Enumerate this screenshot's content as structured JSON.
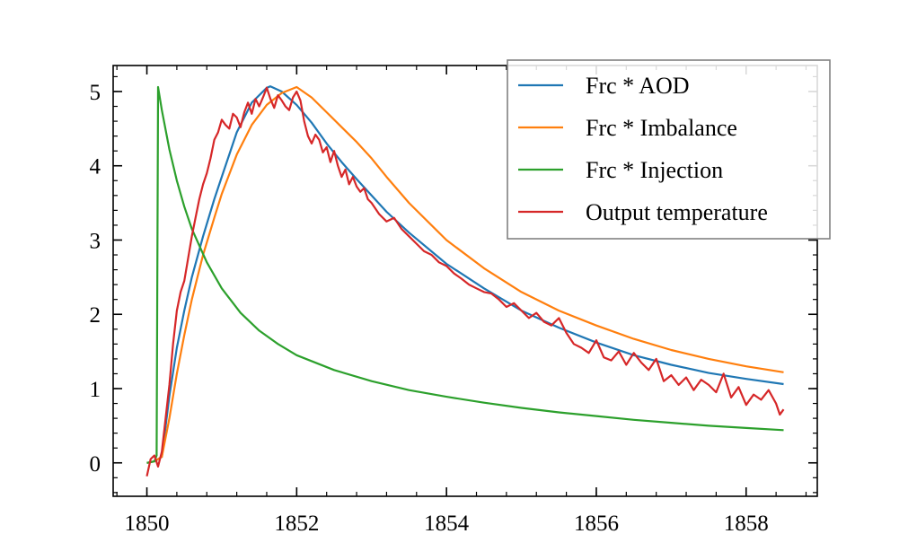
{
  "chart_data": {
    "type": "line",
    "title": "",
    "xlabel": "",
    "ylabel": "",
    "xlim": [
      1849.55,
      1858.95
    ],
    "ylim": [
      -0.45,
      5.35
    ],
    "xticks": [
      1850,
      1852,
      1854,
      1856,
      1858
    ],
    "xtick_labels": [
      "1850",
      "1852",
      "1854",
      "1856",
      "1858"
    ],
    "yticks": [
      0,
      1,
      2,
      3,
      4,
      5
    ],
    "ytick_labels": [
      "0",
      "1",
      "2",
      "3",
      "4",
      "5"
    ],
    "grid": false,
    "legend_position": "top-right",
    "series": [
      {
        "name": "Frc * AOD",
        "color": "#1f77b4",
        "x": [
          1850.0,
          1850.1,
          1850.2,
          1850.3,
          1850.4,
          1850.5,
          1850.6,
          1850.75,
          1850.9,
          1851.0,
          1851.2,
          1851.4,
          1851.6,
          1851.65,
          1851.8,
          1852.0,
          1852.2,
          1852.4,
          1852.6,
          1852.8,
          1853.0,
          1853.2,
          1853.5,
          1854.0,
          1854.5,
          1855.0,
          1855.5,
          1856.0,
          1856.5,
          1857.0,
          1857.5,
          1858.0,
          1858.5
        ],
        "y": [
          0.0,
          0.02,
          0.08,
          0.9,
          1.55,
          2.05,
          2.5,
          3.05,
          3.55,
          3.85,
          4.45,
          4.85,
          5.05,
          5.07,
          5.0,
          4.82,
          4.58,
          4.3,
          4.05,
          3.82,
          3.6,
          3.38,
          3.1,
          2.68,
          2.35,
          2.05,
          1.82,
          1.62,
          1.45,
          1.32,
          1.21,
          1.13,
          1.06
        ]
      },
      {
        "name": "Frc * Imbalance",
        "color": "#ff7f0e",
        "x": [
          1850.0,
          1850.1,
          1850.2,
          1850.3,
          1850.4,
          1850.5,
          1850.6,
          1850.75,
          1850.9,
          1851.0,
          1851.2,
          1851.4,
          1851.6,
          1851.8,
          1852.0,
          1852.2,
          1852.4,
          1852.6,
          1852.8,
          1853.0,
          1853.2,
          1853.5,
          1854.0,
          1854.5,
          1855.0,
          1855.5,
          1856.0,
          1856.5,
          1857.0,
          1857.5,
          1858.0,
          1858.5
        ],
        "y": [
          0.0,
          0.02,
          0.08,
          0.6,
          1.2,
          1.72,
          2.2,
          2.8,
          3.3,
          3.62,
          4.15,
          4.55,
          4.82,
          4.98,
          5.06,
          4.92,
          4.72,
          4.52,
          4.32,
          4.1,
          3.85,
          3.5,
          3.0,
          2.62,
          2.3,
          2.05,
          1.85,
          1.67,
          1.52,
          1.4,
          1.3,
          1.22
        ]
      },
      {
        "name": "Frc * Injection",
        "color": "#2ca02c",
        "x": [
          1850.0,
          1850.1,
          1850.13,
          1850.15,
          1850.2,
          1850.3,
          1850.4,
          1850.5,
          1850.6,
          1850.8,
          1851.0,
          1851.25,
          1851.5,
          1851.75,
          1852.0,
          1852.5,
          1853.0,
          1853.5,
          1854.0,
          1854.5,
          1855.0,
          1855.5,
          1856.0,
          1856.5,
          1857.0,
          1857.5,
          1858.0,
          1858.5
        ],
        "y": [
          0.0,
          0.02,
          0.1,
          5.06,
          4.75,
          4.22,
          3.8,
          3.45,
          3.15,
          2.7,
          2.35,
          2.02,
          1.78,
          1.6,
          1.45,
          1.25,
          1.1,
          0.98,
          0.89,
          0.81,
          0.74,
          0.68,
          0.63,
          0.58,
          0.54,
          0.5,
          0.47,
          0.44
        ]
      },
      {
        "name": "Output temperature",
        "color": "#d62728",
        "x": [
          1850.0,
          1850.05,
          1850.1,
          1850.15,
          1850.2,
          1850.25,
          1850.3,
          1850.35,
          1850.4,
          1850.45,
          1850.5,
          1850.55,
          1850.6,
          1850.65,
          1850.7,
          1850.75,
          1850.8,
          1850.85,
          1850.9,
          1850.95,
          1851.0,
          1851.05,
          1851.1,
          1851.15,
          1851.2,
          1851.25,
          1851.3,
          1851.35,
          1851.4,
          1851.45,
          1851.5,
          1851.55,
          1851.6,
          1851.65,
          1851.7,
          1851.75,
          1851.8,
          1851.85,
          1851.9,
          1851.95,
          1852.0,
          1852.05,
          1852.1,
          1852.15,
          1852.2,
          1852.25,
          1852.3,
          1852.35,
          1852.4,
          1852.45,
          1852.5,
          1852.55,
          1852.6,
          1852.65,
          1852.7,
          1852.75,
          1852.8,
          1852.85,
          1852.9,
          1852.95,
          1853.0,
          1853.1,
          1853.2,
          1853.3,
          1853.4,
          1853.5,
          1853.6,
          1853.7,
          1853.8,
          1853.9,
          1854.0,
          1854.1,
          1854.2,
          1854.3,
          1854.4,
          1854.5,
          1854.6,
          1854.7,
          1854.8,
          1854.9,
          1855.0,
          1855.1,
          1855.2,
          1855.3,
          1855.4,
          1855.5,
          1855.6,
          1855.7,
          1855.8,
          1855.9,
          1856.0,
          1856.1,
          1856.2,
          1856.3,
          1856.4,
          1856.5,
          1856.6,
          1856.7,
          1856.8,
          1856.9,
          1857.0,
          1857.1,
          1857.2,
          1857.3,
          1857.4,
          1857.5,
          1857.6,
          1857.7,
          1857.8,
          1857.9,
          1858.0,
          1858.1,
          1858.2,
          1858.3,
          1858.4,
          1858.45,
          1858.5
        ],
        "y": [
          -0.18,
          0.05,
          0.1,
          -0.05,
          0.15,
          0.6,
          1.05,
          1.6,
          2.05,
          2.3,
          2.45,
          2.75,
          3.05,
          3.3,
          3.55,
          3.75,
          3.9,
          4.1,
          4.35,
          4.45,
          4.62,
          4.55,
          4.5,
          4.7,
          4.65,
          4.52,
          4.72,
          4.85,
          4.7,
          4.9,
          4.8,
          4.92,
          5.05,
          4.9,
          4.78,
          4.95,
          4.88,
          4.8,
          4.75,
          4.92,
          5.0,
          4.88,
          4.6,
          4.4,
          4.3,
          4.42,
          4.35,
          4.18,
          4.25,
          4.05,
          4.2,
          4.0,
          3.85,
          3.95,
          3.75,
          3.85,
          3.72,
          3.65,
          3.7,
          3.55,
          3.5,
          3.35,
          3.25,
          3.3,
          3.15,
          3.05,
          2.95,
          2.85,
          2.8,
          2.7,
          2.65,
          2.55,
          2.48,
          2.4,
          2.35,
          2.3,
          2.28,
          2.2,
          2.1,
          2.15,
          2.05,
          1.95,
          2.02,
          1.9,
          1.85,
          1.95,
          1.75,
          1.6,
          1.55,
          1.48,
          1.65,
          1.42,
          1.38,
          1.5,
          1.32,
          1.48,
          1.35,
          1.25,
          1.4,
          1.1,
          1.18,
          1.05,
          1.15,
          0.98,
          1.12,
          1.05,
          0.95,
          1.2,
          0.88,
          1.02,
          0.78,
          0.92,
          0.85,
          0.98,
          0.8,
          0.65,
          0.72
        ]
      }
    ]
  }
}
